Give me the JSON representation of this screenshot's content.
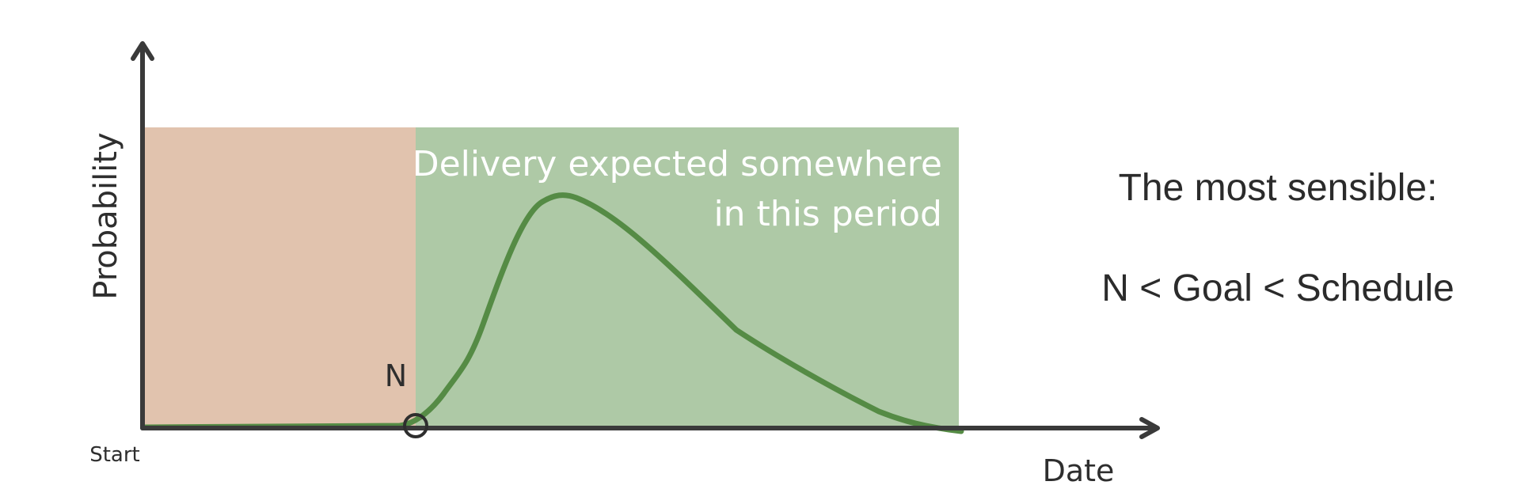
{
  "axes": {
    "y_label": "Probability",
    "x_label": "Date",
    "origin_label": "Start",
    "marker_label": "N"
  },
  "regions": {
    "before_n_color": "#e1c3ae",
    "delivery_color": "#aec9a6",
    "delivery_text_line1": "Delivery expected somewhere",
    "delivery_text_line2": "in this period"
  },
  "curve": {
    "color": "#558b45",
    "description_icon": "bell-curve-line"
  },
  "side_note": {
    "line1": "The most sensible:",
    "line2": "N < Goal < Schedule"
  }
}
